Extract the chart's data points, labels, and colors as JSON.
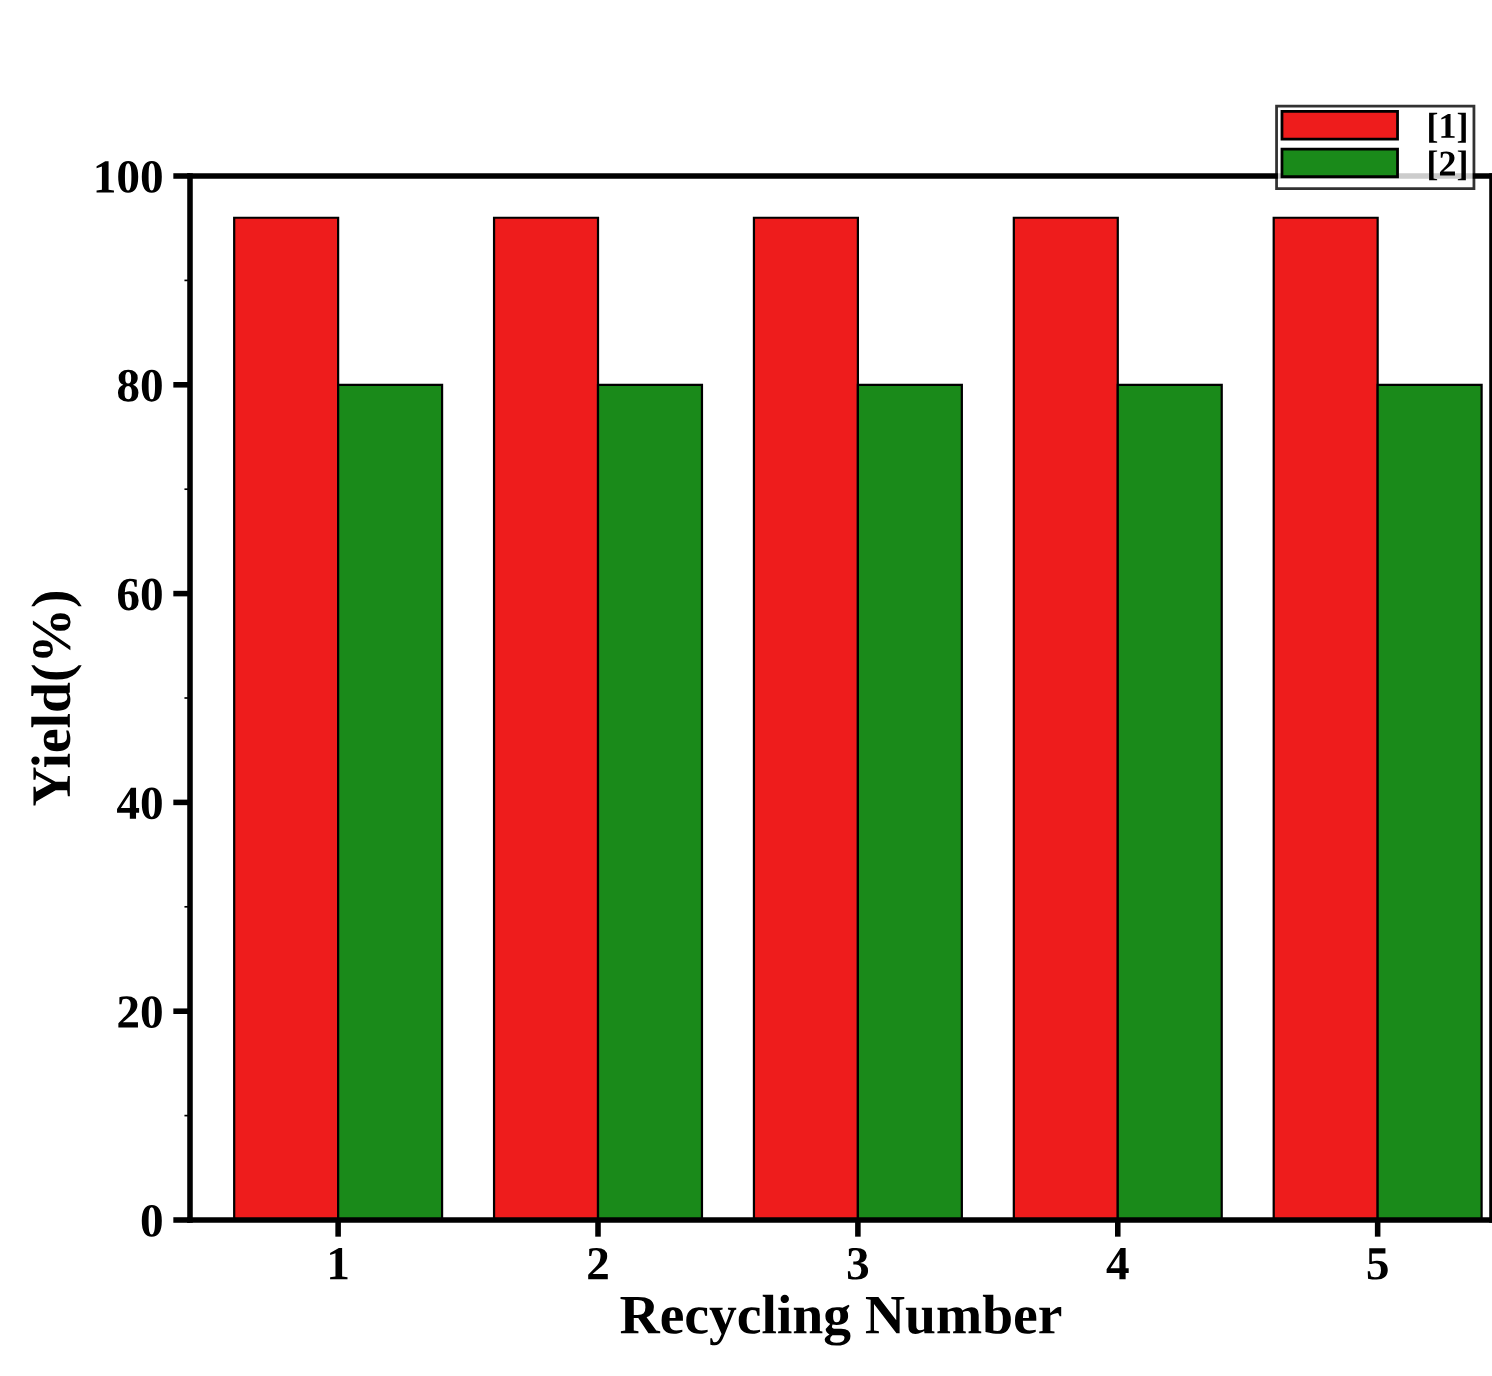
{
  "chart_data": {
    "type": "bar",
    "xlabel": "Recycling Number",
    "ylabel": "Yield(%)",
    "categories": [
      "1",
      "2",
      "3",
      "4",
      "5"
    ],
    "series": [
      {
        "name": "[1]",
        "color": "#ee1c1c",
        "values": [
          96,
          96,
          96,
          96,
          96
        ]
      },
      {
        "name": "[2]",
        "color": "#1a8a1a",
        "values": [
          80,
          80,
          80,
          80,
          80
        ]
      }
    ],
    "ylim": [
      0,
      100
    ],
    "yticks": [
      0,
      20,
      40,
      60,
      80,
      100
    ],
    "grid": false,
    "legend": "top right"
  }
}
